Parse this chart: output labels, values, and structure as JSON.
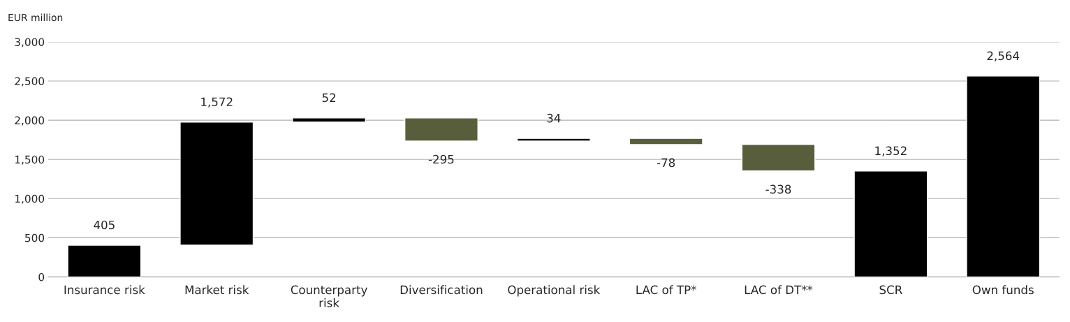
{
  "chart_data": {
    "type": "bar",
    "ylabel": "EUR million",
    "categories": [
      "Insurance risk",
      "Market risk",
      "Counterparty\nrisk",
      "Diversification",
      "Operational risk",
      "LAC of TP*",
      "LAC of DT**",
      "SCR",
      "Own funds"
    ],
    "values": [
      405,
      1572,
      52,
      -295,
      34,
      -78,
      -338,
      1352,
      2564
    ],
    "base": [
      0,
      405,
      1977,
      2029,
      1734,
      1768,
      1690,
      0,
      0
    ],
    "colors": [
      "#000000",
      "#000000",
      "#000000",
      "#585e3b",
      "#000000",
      "#585e3b",
      "#585e3b",
      "#000000",
      "#000000"
    ],
    "value_labels": [
      "405",
      "1,572",
      "52",
      "-295",
      "34",
      "-78",
      "-338",
      "1,352",
      "2,564"
    ],
    "ylim": [
      0,
      3000
    ],
    "yticks": [
      0,
      {
        "value": 500,
        "label": "500"
      },
      {
        "value": 1000,
        "label": "1,000"
      },
      {
        "value": 1500,
        "label": "1,500"
      },
      {
        "value": 2000,
        "label": "2,000"
      },
      {
        "value": 2500,
        "label": "2,500"
      },
      {
        "value": 3000,
        "label": "3,000"
      }
    ],
    "grid": "y",
    "legend": false
  }
}
